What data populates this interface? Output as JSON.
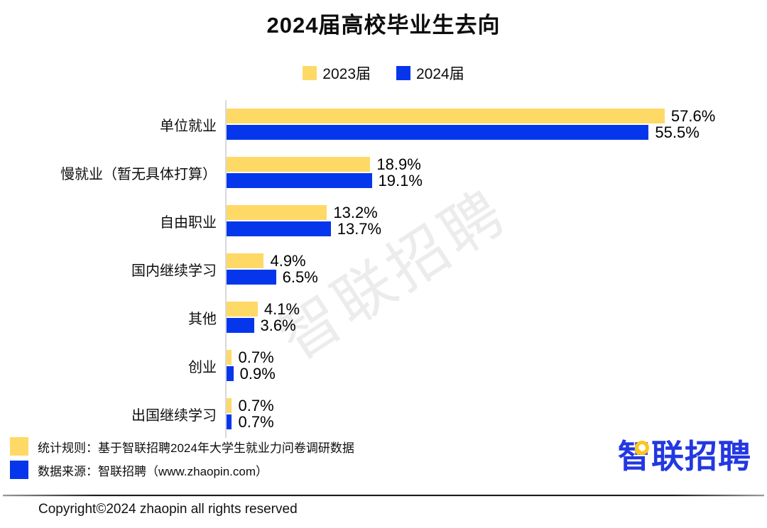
{
  "title": "2024届高校毕业生去向",
  "watermark": "智联招聘",
  "legend": [
    {
      "label": "2023届",
      "color": "#FFD966"
    },
    {
      "label": "2024届",
      "color": "#0636EC"
    }
  ],
  "chart_data": {
    "type": "bar",
    "orientation": "horizontal",
    "title": "2024届高校毕业生去向",
    "categories": [
      "单位就业",
      "慢就业（暂无具体打算）",
      "自由职业",
      "国内继续学习",
      "其他",
      "创业",
      "出国继续学习"
    ],
    "series": [
      {
        "name": "2023届",
        "color": "#FFD966",
        "values": [
          57.6,
          18.9,
          13.2,
          4.9,
          4.1,
          0.7,
          0.7
        ]
      },
      {
        "name": "2024届",
        "color": "#0636EC",
        "values": [
          55.5,
          19.1,
          13.7,
          6.5,
          3.6,
          0.9,
          0.7
        ]
      }
    ],
    "value_suffix": "%",
    "xlim": [
      0,
      60
    ],
    "grid": false,
    "legend_position": "top",
    "value_labels": "outside-end"
  },
  "footer": {
    "notes": [
      {
        "swatch_color": "#FFD966",
        "text": "统计规则：基于智联招聘2024年大学生就业力问卷调研数据"
      },
      {
        "swatch_color": "#0636EC",
        "text": "数据来源：智联招聘（www.zhaopin.com）"
      }
    ],
    "logo_text": "智联招聘",
    "copyright": "Copyright©2024 zhaopin all rights reserved"
  },
  "colors": {
    "bar_2023": "#FFD966",
    "bar_2024": "#0636EC",
    "axis_line": "#D9D9D9",
    "logo_blue": "#2338E0",
    "logo_yellow": "#FFC61A",
    "watermark_gray": "#ECECEC"
  }
}
